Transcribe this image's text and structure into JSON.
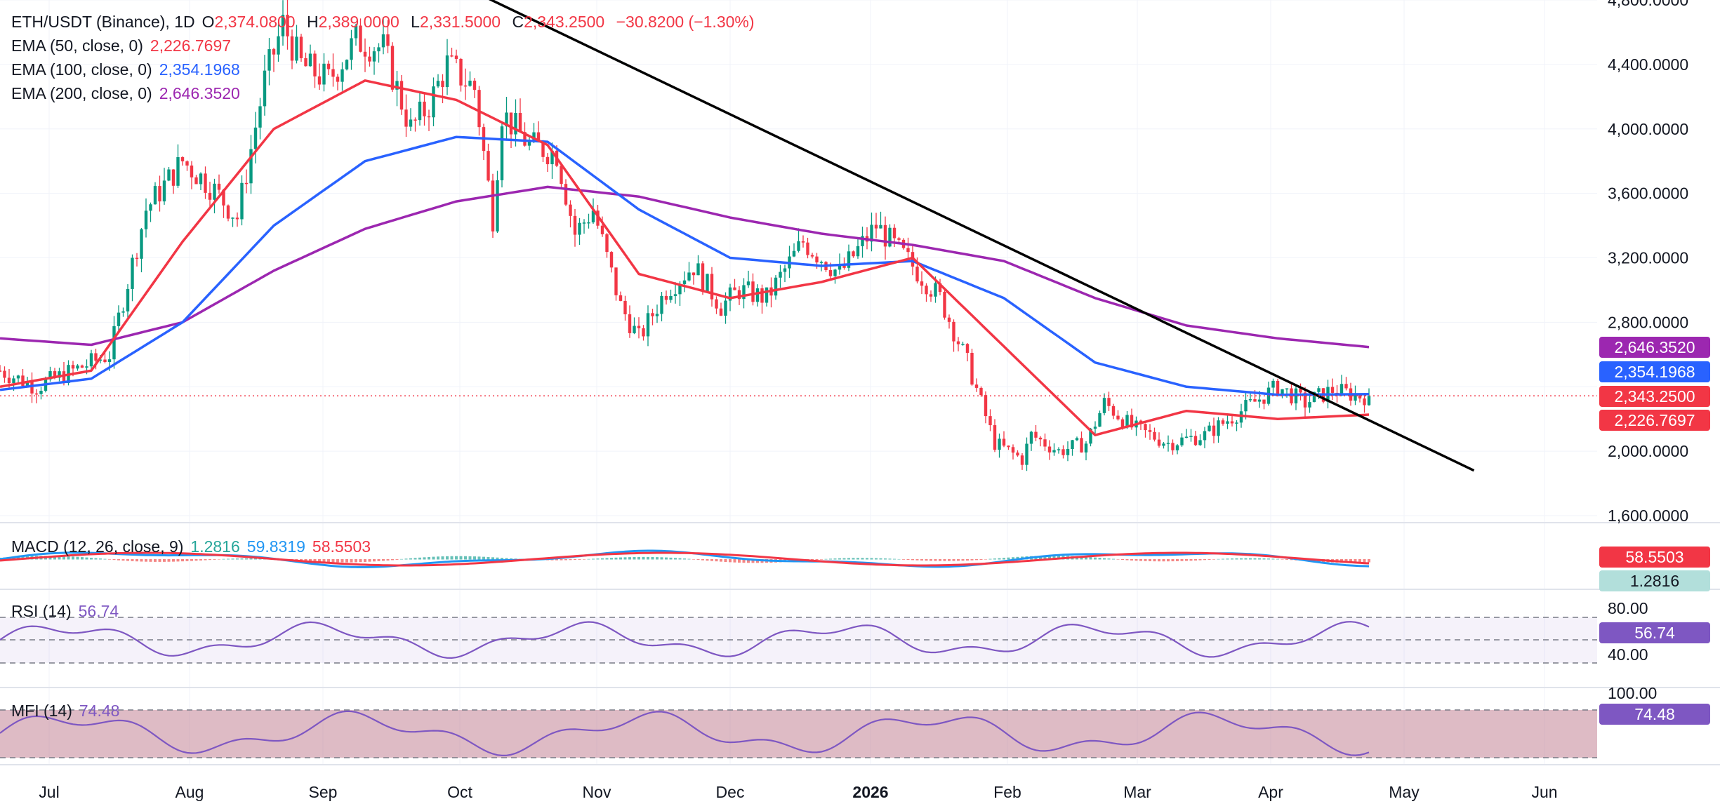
{
  "header": {
    "symbol": "ETH/USDT (Binance), 1D",
    "open_label": "O",
    "open": "2,374.0800",
    "high_label": "H",
    "high": "2,389.0000",
    "low_label": "L",
    "low": "2,331.5000",
    "close_label": "C",
    "close": "2,343.2500",
    "change": "−30.8200 (−1.30%)"
  },
  "indicators": [
    {
      "label": "EMA (50, close, 0)",
      "value": "2,226.7697",
      "color": "#f23645"
    },
    {
      "label": "EMA (100, close, 0)",
      "value": "2,354.1968",
      "color": "#2962ff"
    },
    {
      "label": "EMA (200, close, 0)",
      "value": "2,646.3520",
      "color": "#9c27b0"
    }
  ],
  "price_tags": [
    {
      "value": "2,646.3520",
      "color": "#9c27b0",
      "price": 2646.35
    },
    {
      "value": "2,354.1968",
      "color": "#2962ff",
      "price": 2354.2
    },
    {
      "value": "2,343.2500",
      "color": "#f23645",
      "price": 2343.25
    },
    {
      "value": "2,226.7697",
      "color": "#f23645",
      "price": 2226.77
    }
  ],
  "macd": {
    "label": "MACD (12, 26, close, 9)",
    "hist": "1.2816",
    "macd": "59.8319",
    "signal": "58.5503",
    "tag_signal": "58.5503",
    "tag_hist": "1.2816",
    "colors": {
      "macd": "#2196f3",
      "signal": "#f23645",
      "hist_up": "#26a69a",
      "hist_down": "#ef5350",
      "hist_tag": "#b2dfdb"
    }
  },
  "rsi": {
    "label": "RSI (14)",
    "value": "56.74",
    "ticks": [
      "80.00",
      "40.00"
    ],
    "color": "#7e57c2"
  },
  "mfi": {
    "label": "MFI (14)",
    "value": "74.48",
    "ticks": [
      "100.00"
    ],
    "color": "#7e57c2"
  },
  "chart_data": {
    "type": "candlestick",
    "title": "ETH/USDT (Binance), 1D",
    "ylim": [
      1600,
      4800
    ],
    "y_ticks": [
      "4,800.0000",
      "4,400.0000",
      "4,000.0000",
      "3,600.0000",
      "3,200.0000",
      "2,800.0000",
      "2,000.0000",
      "1,600.0000"
    ],
    "x_labels": [
      "Jul",
      "Aug",
      "Sep",
      "Oct",
      "Nov",
      "Dec",
      "2026",
      "Feb",
      "Mar",
      "Apr",
      "May",
      "Jun"
    ],
    "close_series": {
      "x": [
        0,
        8,
        16,
        24,
        32,
        40,
        46,
        52,
        58,
        62,
        66,
        72,
        78,
        84,
        90,
        94,
        98,
        104,
        108,
        110,
        116,
        122,
        126,
        130,
        136,
        140,
        146,
        152,
        158,
        162,
        168,
        176,
        184,
        192,
        200,
        206,
        212,
        218,
        224,
        226,
        232,
        238,
        242,
        248,
        256,
        264,
        272,
        280,
        286,
        292,
        298
      ],
      "values": [
        2500,
        2400,
        2500,
        2600,
        3500,
        3800,
        3650,
        3450,
        4300,
        4650,
        4400,
        4300,
        4550,
        4500,
        4000,
        4150,
        4400,
        4250,
        3450,
        4100,
        3900,
        3850,
        3350,
        3500,
        2900,
        2700,
        3000,
        3150,
        2900,
        3000,
        2950,
        3300,
        3100,
        3400,
        3150,
        2950,
        2550,
        2050,
        1950,
        2100,
        2000,
        2050,
        2300,
        2150,
        2050,
        2100,
        2250,
        2400,
        2300,
        2380,
        2343
      ]
    },
    "ema": {
      "x": [
        0,
        20,
        40,
        60,
        80,
        100,
        120,
        140,
        160,
        180,
        200,
        220,
        240,
        260,
        280,
        300
      ],
      "ema50": [
        2400,
        2500,
        3300,
        4000,
        4300,
        4180,
        3900,
        3100,
        2950,
        3050,
        3200,
        2650,
        2100,
        2250,
        2200,
        2226.77
      ],
      "ema100": [
        2380,
        2450,
        2800,
        3400,
        3800,
        3950,
        3920,
        3500,
        3200,
        3150,
        3180,
        2950,
        2550,
        2400,
        2350,
        2354.2
      ],
      "ema200": [
        2700,
        2660,
        2800,
        3120,
        3380,
        3550,
        3640,
        3580,
        3450,
        3350,
        3280,
        3180,
        2950,
        2780,
        2700,
        2646.35
      ]
    },
    "trendline": {
      "start": [
        104,
        4850
      ],
      "end": [
        323,
        1880
      ]
    },
    "series": [
      {
        "name": "EMA 50",
        "value": 2226.77
      },
      {
        "name": "EMA 100",
        "value": 2354.2
      },
      {
        "name": "EMA 200",
        "value": 2646.35
      }
    ],
    "last_close": 2343.25
  }
}
